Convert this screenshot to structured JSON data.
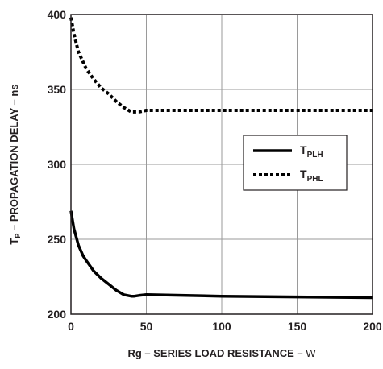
{
  "chart_data": {
    "type": "line",
    "xlabel_main": "Rg – SERIES LOAD RESISTANCE – ",
    "xlabel_unit": "W",
    "ylabel_main": "T",
    "ylabel_sub": "P",
    "ylabel_rest": " – PROPAGATION DELAY – ns",
    "xlim": [
      0,
      200
    ],
    "ylim": [
      200,
      400
    ],
    "xticks": [
      0,
      50,
      100,
      150,
      200
    ],
    "yticks": [
      200,
      250,
      300,
      350,
      400
    ],
    "grid": true,
    "legend_position": "right, inside plot",
    "series": [
      {
        "name_main": "T",
        "name_sub": "PLH",
        "style": "solid",
        "color": "#000000",
        "x": [
          0,
          2,
          5,
          8,
          10,
          15,
          20,
          25,
          30,
          35,
          40,
          42,
          45,
          50,
          100,
          150,
          200
        ],
        "y": [
          269,
          257,
          246,
          239,
          236,
          229,
          224,
          220,
          216,
          213,
          212,
          212,
          212.5,
          213,
          212,
          211.5,
          211
        ]
      },
      {
        "name_main": "T",
        "name_sub": "PHL",
        "style": "dotted",
        "color": "#000000",
        "x": [
          0,
          2,
          5,
          10,
          15,
          20,
          25,
          30,
          35,
          40,
          45,
          50,
          100,
          150,
          200
        ],
        "y": [
          398,
          387,
          375,
          364,
          357,
          351,
          347,
          342,
          338,
          335,
          335,
          336,
          336,
          336,
          336
        ]
      }
    ]
  }
}
